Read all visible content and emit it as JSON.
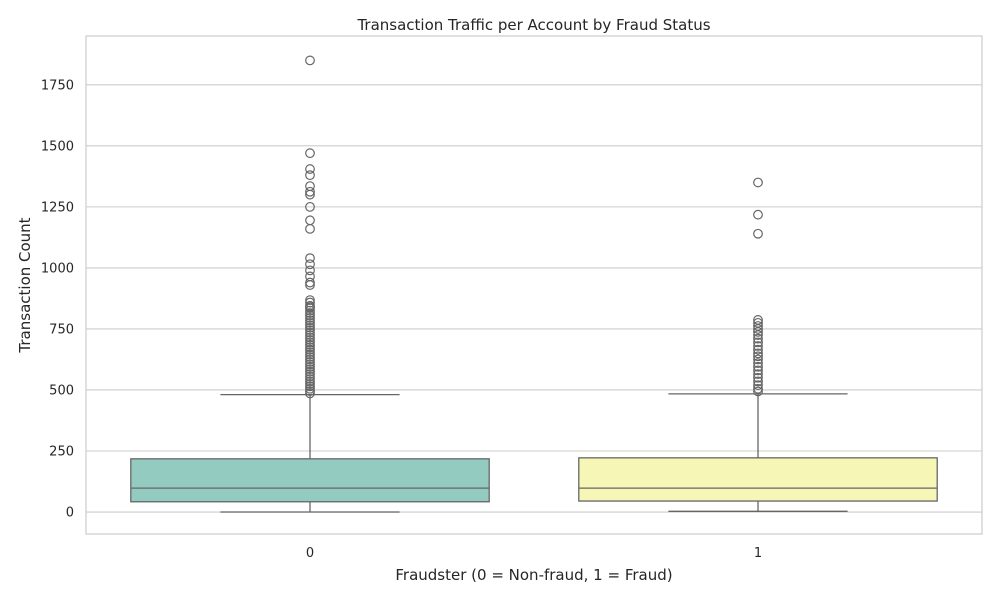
{
  "chart_data": {
    "type": "box",
    "title": "Transaction Traffic per Account by Fraud Status",
    "xlabel": "Fraudster (0 = Non-fraud, 1 = Fraud)",
    "ylabel": "Transaction Count",
    "categories": [
      "0",
      "1"
    ],
    "y_ticks": [
      0,
      250,
      500,
      750,
      1000,
      1250,
      1500,
      1750
    ],
    "y_tick_labels": [
      "0",
      "250",
      "500",
      "750",
      "1000",
      "1250",
      "1500",
      "1750"
    ],
    "ylim": [
      -90,
      1950
    ],
    "grid": true,
    "colors": {
      "box_0": "#94cbc1",
      "box_1": "#f6f7b7",
      "line": "#666666",
      "grid": "#cccccc",
      "frame": "#cccccc"
    },
    "series": [
      {
        "category": "0",
        "whisker_low": 0,
        "q1": 42,
        "median": 98,
        "q3": 218,
        "whisker_high": 481,
        "outliers": [
          1850,
          1470,
          1405,
          1380,
          1335,
          1312,
          1300,
          1250,
          1195,
          1160,
          1040,
          1015,
          990,
          965,
          940,
          930,
          868,
          858,
          845,
          840,
          835,
          825,
          815,
          805,
          795,
          785,
          775,
          765,
          755,
          745,
          735,
          725,
          715,
          705,
          695,
          685,
          675,
          665,
          655,
          645,
          635,
          625,
          615,
          605,
          595,
          585,
          575,
          565,
          555,
          545,
          535,
          525,
          515,
          505,
          495,
          486
        ]
      },
      {
        "category": "1",
        "whisker_low": 3,
        "q1": 45,
        "median": 98,
        "q3": 222,
        "whisker_high": 484,
        "outliers": [
          1350,
          1218,
          1140,
          787,
          775,
          762,
          750,
          738,
          725,
          710,
          695,
          680,
          665,
          650,
          638,
          625,
          610,
          595,
          580,
          565,
          550,
          535,
          520,
          505,
          494
        ]
      }
    ]
  }
}
